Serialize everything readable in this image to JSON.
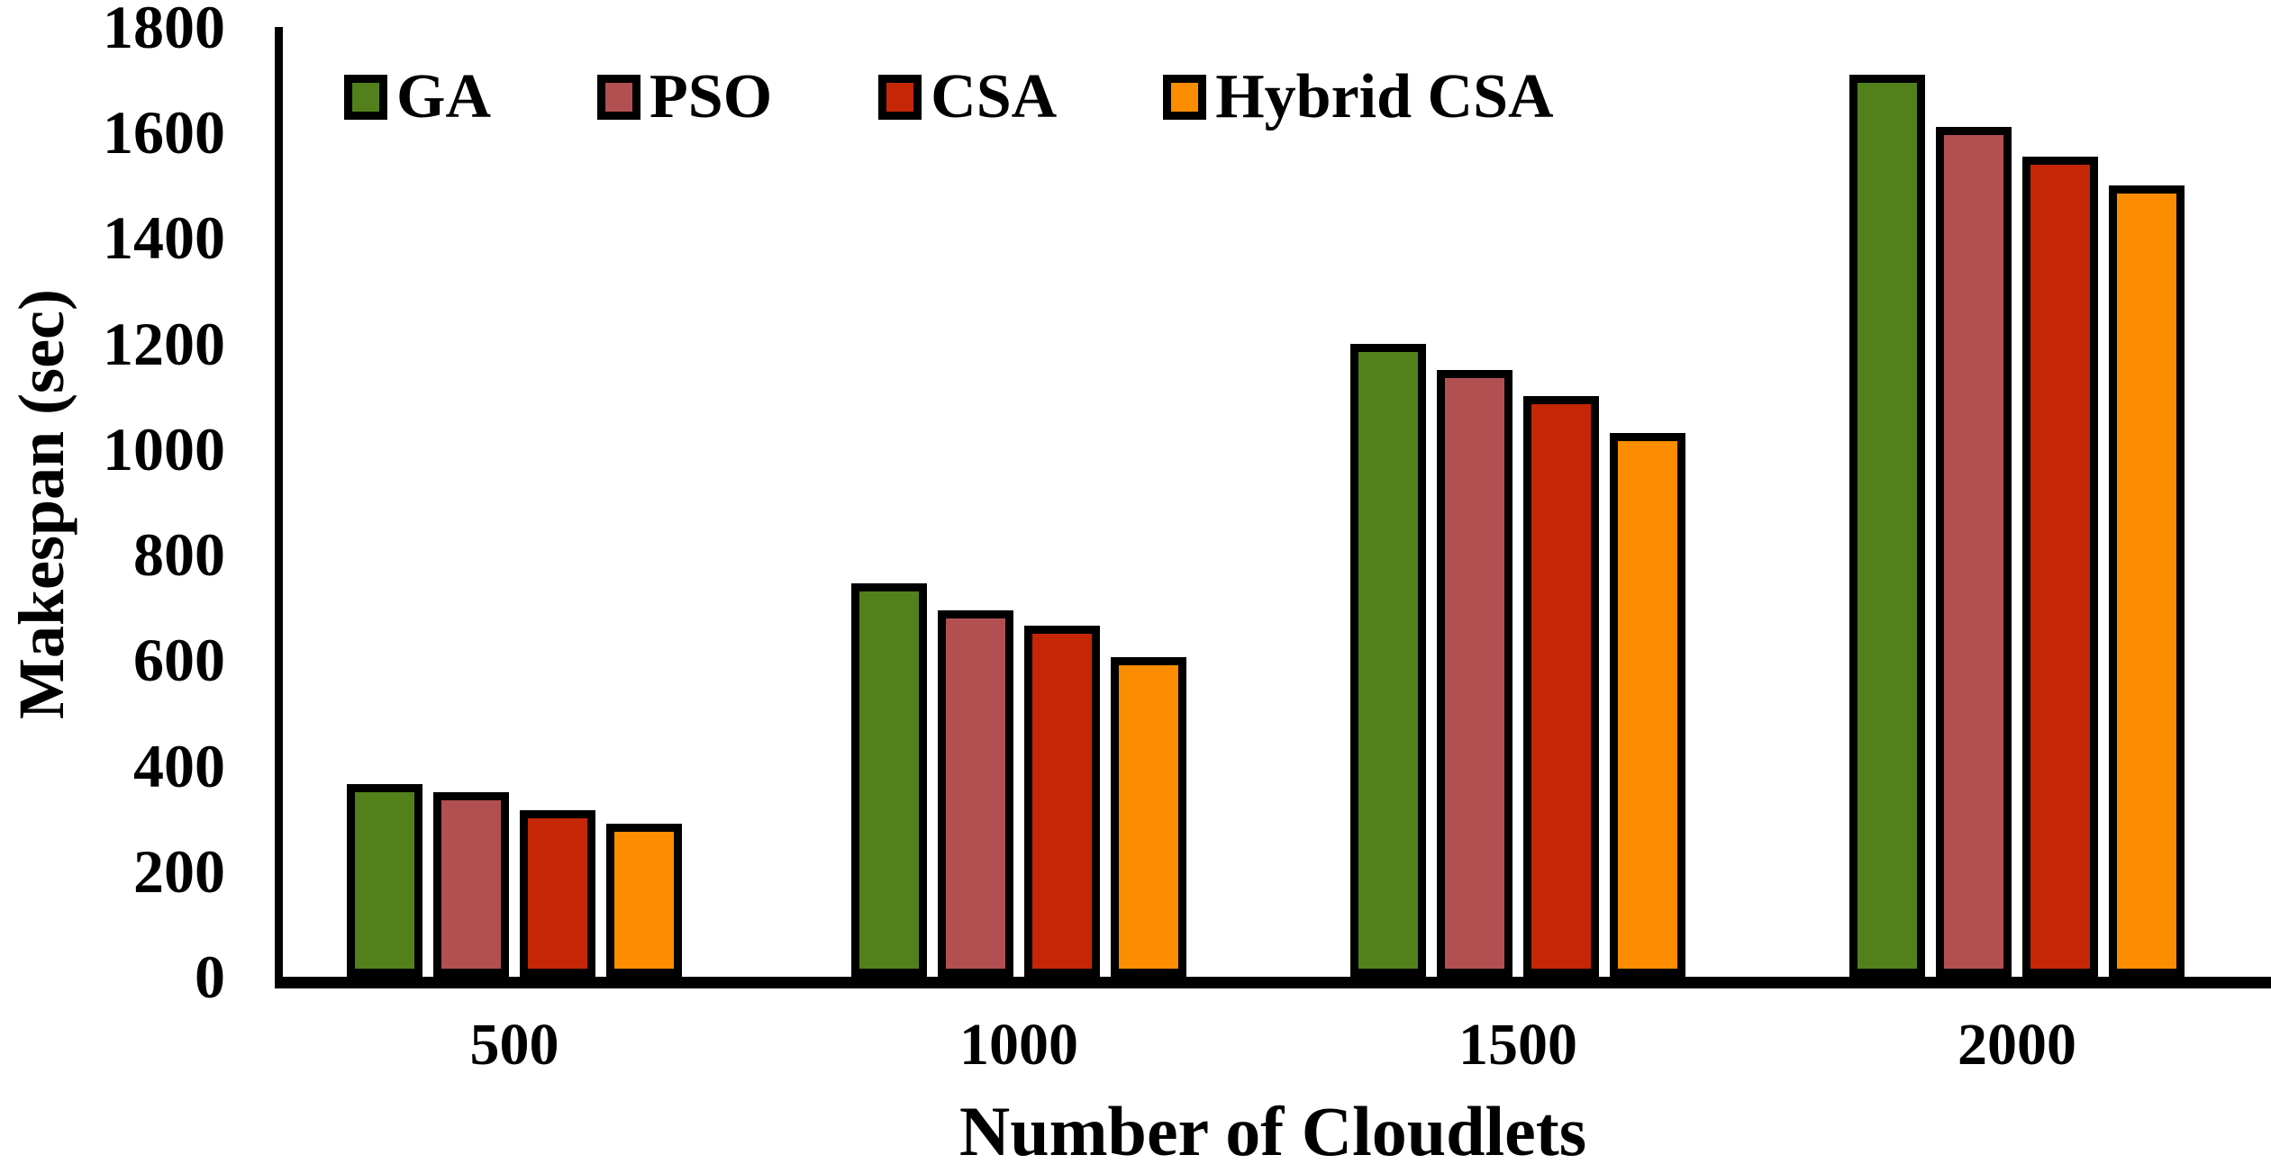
{
  "chart_data": {
    "type": "bar",
    "title": "",
    "xlabel": "Number of Cloudlets",
    "ylabel": "Makespan (sec)",
    "categories": [
      "500",
      "1000",
      "1500",
      "2000"
    ],
    "series": [
      {
        "name": "GA",
        "color": "#52801B",
        "values": [
          365,
          745,
          1200,
          1710
        ]
      },
      {
        "name": "PSO",
        "color": "#B25051",
        "values": [
          350,
          695,
          1150,
          1610
        ]
      },
      {
        "name": "CSA",
        "color": "#C52706",
        "values": [
          315,
          665,
          1100,
          1555
        ]
      },
      {
        "name": "Hybrid CSA",
        "color": "#FC8D00",
        "values": [
          290,
          605,
          1030,
          1500
        ]
      }
    ],
    "ylim": [
      0,
      1800
    ],
    "yticks": [
      0,
      200,
      400,
      600,
      800,
      1000,
      1200,
      1400,
      1600,
      1800
    ],
    "legend_position": "top-left-inside",
    "grid": false
  },
  "colors": {
    "background": "#FFFFFF",
    "axis": "#000000",
    "bar_border": "#000000",
    "text": "#000000"
  }
}
